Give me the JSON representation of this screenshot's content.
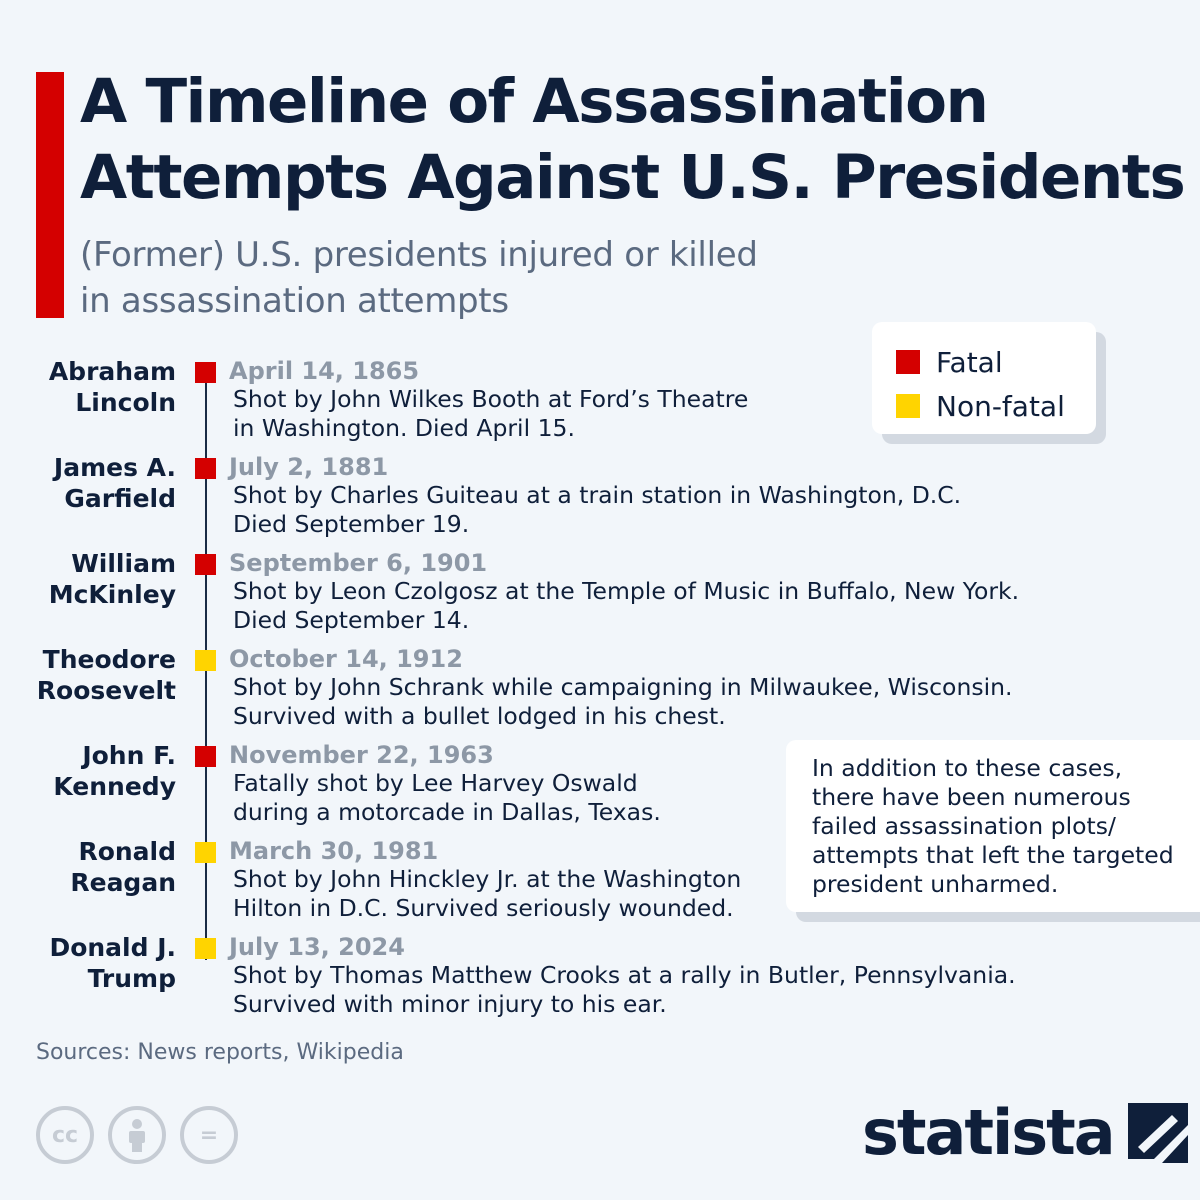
{
  "title": "A Timeline of Assassination Attempts Against U.S. Presidents",
  "subtitle_lines": [
    "(Former) U.S. presidents injured or killed",
    "in assassination attempts"
  ],
  "colors": {
    "fatal": "#d40000",
    "non_fatal": "#ffd400",
    "accent": "#d40000"
  },
  "legend": {
    "fatal_label": "Fatal",
    "non_fatal_label": "Non-fatal"
  },
  "events": [
    {
      "name_lines": [
        "Abraham",
        "Lincoln"
      ],
      "date": "April 14, 1865",
      "outcome": "fatal",
      "desc_lines": [
        "Shot by John Wilkes Booth at Ford’s Theatre",
        "in Washington. Died April 15."
      ]
    },
    {
      "name_lines": [
        "James A.",
        "Garfield"
      ],
      "date": "July 2, 1881",
      "outcome": "fatal",
      "desc_lines": [
        "Shot by Charles Guiteau at a train station in Washington, D.C.",
        "Died September 19."
      ]
    },
    {
      "name_lines": [
        "William",
        "McKinley"
      ],
      "date": "September 6, 1901",
      "outcome": "fatal",
      "desc_lines": [
        "Shot by Leon Czolgosz at the Temple of Music in Buffalo, New York.",
        "Died September 14."
      ]
    },
    {
      "name_lines": [
        "Theodore",
        "Roosevelt"
      ],
      "date": "October 14, 1912",
      "outcome": "non-fatal",
      "desc_lines": [
        "Shot by John Schrank while campaigning in Milwaukee, Wisconsin.",
        "Survived with a bullet lodged in his chest."
      ]
    },
    {
      "name_lines": [
        "John F.",
        "Kennedy"
      ],
      "date": "November 22, 1963",
      "outcome": "fatal",
      "desc_lines": [
        "Fatally shot by Lee Harvey Oswald",
        "during a motorcade in Dallas, Texas."
      ]
    },
    {
      "name_lines": [
        "Ronald",
        "Reagan"
      ],
      "date": "March 30, 1981",
      "outcome": "non-fatal",
      "desc_lines": [
        "Shot by John Hinckley Jr. at the Washington",
        "Hilton in D.C. Survived seriously wounded."
      ]
    },
    {
      "name_lines": [
        "Donald J.",
        "Trump"
      ],
      "date": "July 13, 2024",
      "outcome": "non-fatal",
      "desc_lines": [
        "Shot by Thomas Matthew Crooks at a rally in Butler, Pennsylvania.",
        "Survived with minor injury to his ear."
      ]
    }
  ],
  "note_lines": [
    "In addition to these cases,",
    "there have been numerous",
    "failed assassination plots/",
    "attempts that left the targeted",
    "president unharmed."
  ],
  "source": "Sources: News reports, Wikipedia",
  "license_icons": [
    {
      "name": "creative-commons-icon",
      "glyph": "cc"
    },
    {
      "name": "attribution-icon",
      "glyph": ""
    },
    {
      "name": "no-derivatives-icon",
      "glyph": "="
    }
  ],
  "brand": "statista"
}
